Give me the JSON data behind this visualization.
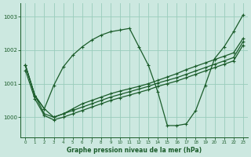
{
  "title": "Graphe pression niveau de la mer (hPa)",
  "background_color": "#cce8e0",
  "grid_color": "#99ccbb",
  "line_color": "#1a5c2a",
  "xlim": [
    -0.5,
    23.5
  ],
  "ylim": [
    999.4,
    1003.4
  ],
  "yticks": [
    1000,
    1001,
    1002,
    1003
  ],
  "xticks": [
    0,
    1,
    2,
    3,
    4,
    5,
    6,
    7,
    8,
    9,
    10,
    11,
    12,
    13,
    14,
    15,
    16,
    17,
    18,
    19,
    20,
    21,
    22,
    23
  ],
  "series": [
    {
      "x": [
        0,
        1,
        2,
        3,
        4,
        5,
        6,
        7,
        8,
        9,
        10,
        11,
        12,
        13,
        14,
        15,
        16,
        17,
        18,
        19,
        20,
        21,
        22,
        23
      ],
      "y": [
        1001.55,
        1000.65,
        1000.25,
        1000.95,
        1001.5,
        1001.85,
        1002.1,
        1002.3,
        1002.45,
        1002.55,
        1002.6,
        1002.65,
        1002.1,
        1001.55,
        1000.75,
        999.75,
        999.75,
        999.8,
        1000.2,
        1000.95,
        1001.75,
        1002.1,
        1002.55,
        1003.05
      ]
    },
    {
      "x": [
        0,
        1,
        2,
        3,
        4,
        5,
        6,
        7,
        8,
        9,
        10,
        11,
        12,
        13,
        14,
        15,
        16,
        17,
        18,
        19,
        20,
        21,
        22,
        23
      ],
      "y": [
        1001.55,
        1000.65,
        1000.25,
        1000.0,
        1000.1,
        1000.25,
        1000.4,
        1000.5,
        1000.6,
        1000.7,
        1000.78,
        1000.85,
        1000.92,
        1001.0,
        1001.1,
        1001.2,
        1001.3,
        1001.42,
        1001.52,
        1001.62,
        1001.72,
        1001.82,
        1001.92,
        1002.35
      ]
    },
    {
      "x": [
        0,
        1,
        2,
        3,
        4,
        5,
        6,
        7,
        8,
        9,
        10,
        11,
        12,
        13,
        14,
        15,
        16,
        17,
        18,
        19,
        20,
        21,
        22,
        23
      ],
      "y": [
        1001.55,
        1000.65,
        1000.1,
        1000.0,
        1000.1,
        1000.2,
        1000.3,
        1000.4,
        1000.5,
        1000.6,
        1000.68,
        1000.76,
        1000.84,
        1000.92,
        1001.02,
        1001.1,
        1001.18,
        1001.28,
        1001.38,
        1001.48,
        1001.58,
        1001.68,
        1001.78,
        1002.25
      ]
    },
    {
      "x": [
        0,
        1,
        2,
        3,
        4,
        5,
        6,
        7,
        8,
        9,
        10,
        11,
        12,
        13,
        14,
        15,
        16,
        17,
        18,
        19,
        20,
        21,
        22,
        23
      ],
      "y": [
        1001.4,
        1000.55,
        1000.05,
        999.92,
        1000.0,
        1000.1,
        1000.2,
        1000.3,
        1000.4,
        1000.5,
        1000.58,
        1000.66,
        1000.74,
        1000.82,
        1000.92,
        1001.0,
        1001.08,
        1001.18,
        1001.28,
        1001.38,
        1001.48,
        1001.58,
        1001.68,
        1002.15
      ]
    }
  ]
}
